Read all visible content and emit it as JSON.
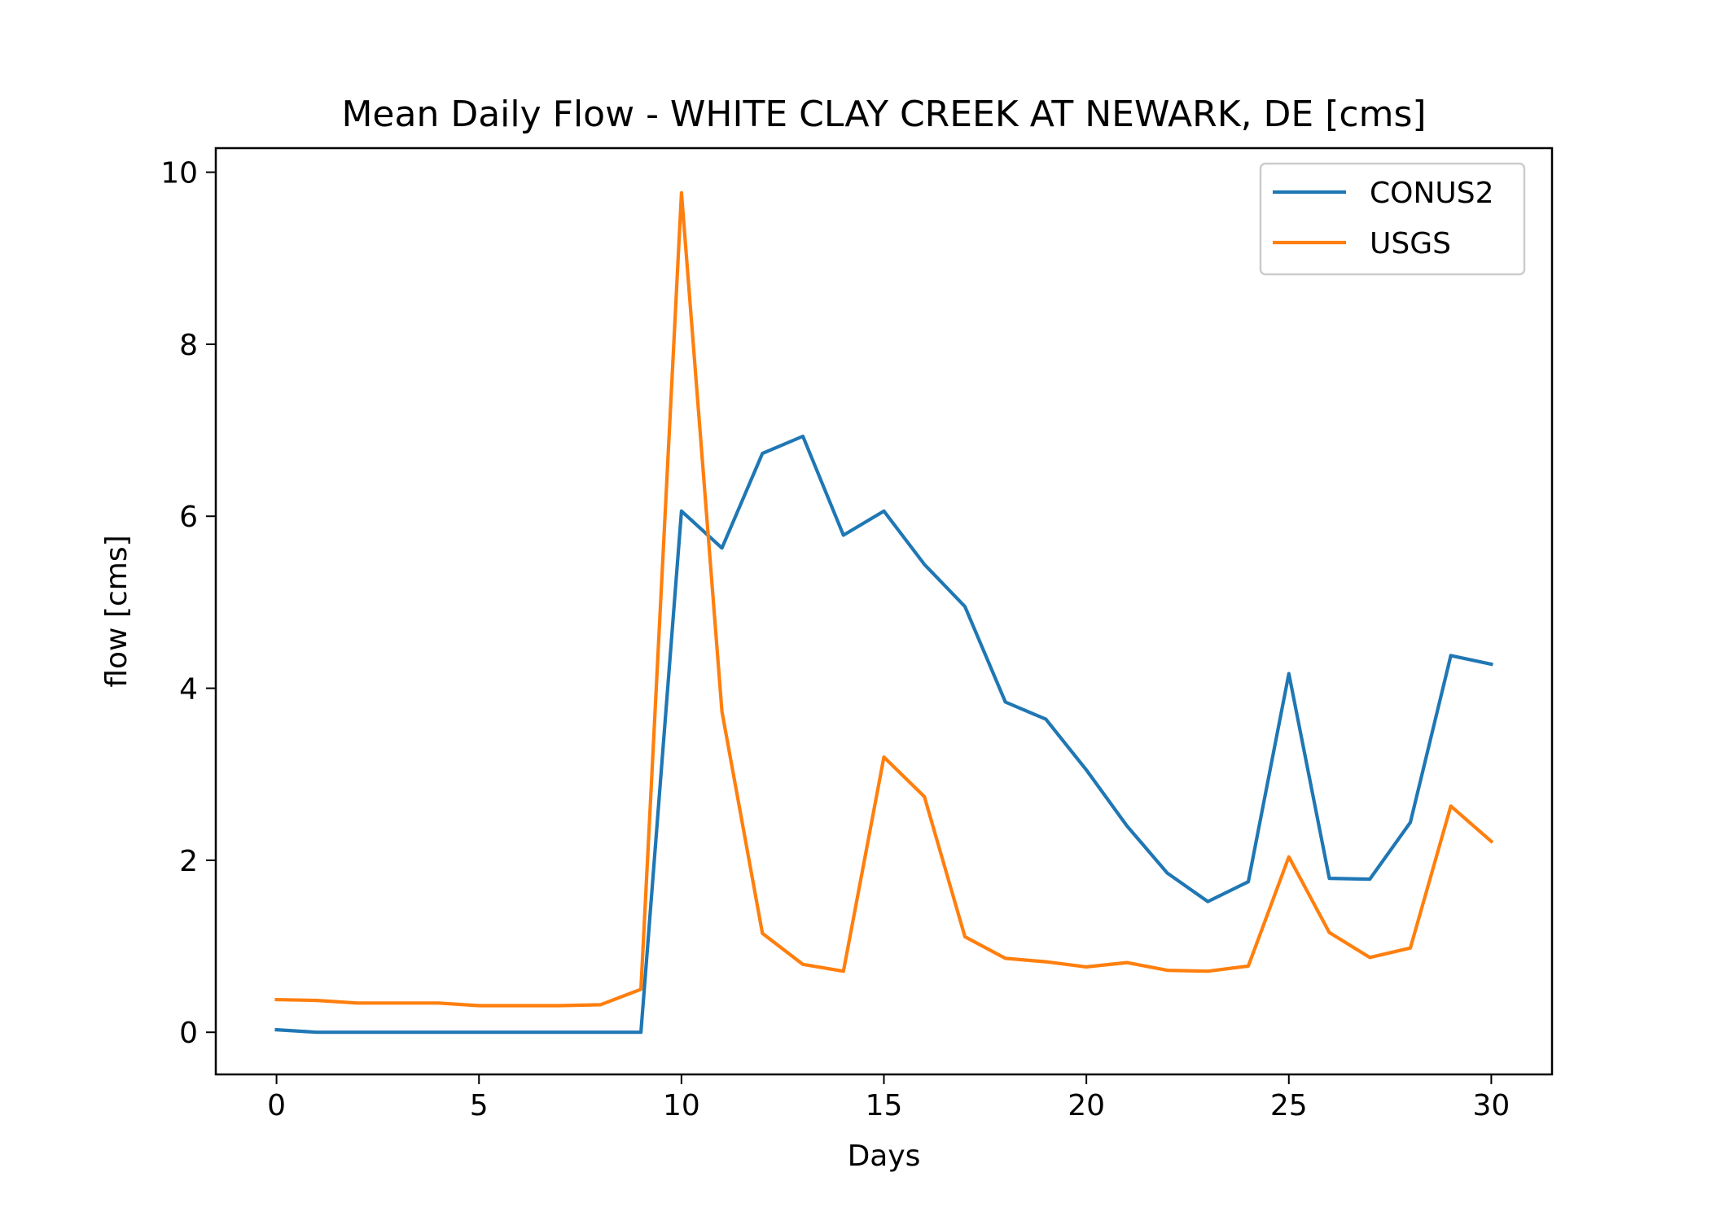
{
  "chart_data": {
    "type": "line",
    "title": "Mean Daily Flow - WHITE CLAY CREEK AT NEWARK, DE [cms]",
    "xlabel": "Days",
    "ylabel": "flow [cms]",
    "xlim": [
      -1.5,
      31.5
    ],
    "ylim": [
      -0.49,
      10.28
    ],
    "xticks": [
      0,
      5,
      10,
      15,
      20,
      25,
      30
    ],
    "yticks": [
      0,
      2,
      4,
      6,
      8,
      10
    ],
    "xtick_labels": [
      "0",
      "5",
      "10",
      "15",
      "20",
      "25",
      "30"
    ],
    "ytick_labels": [
      "0",
      "2",
      "4",
      "6",
      "8",
      "10"
    ],
    "grid": false,
    "legend_position": "top-right",
    "x": [
      0,
      1,
      2,
      3,
      4,
      5,
      6,
      7,
      8,
      9,
      10,
      11,
      12,
      13,
      14,
      15,
      16,
      17,
      18,
      19,
      20,
      21,
      22,
      23,
      24,
      25,
      26,
      27,
      28,
      29,
      30
    ],
    "series": [
      {
        "name": "CONUS2",
        "color": "#1f77b4",
        "values": [
          0.03,
          0.0,
          0.0,
          0.0,
          0.0,
          0.0,
          0.0,
          0.0,
          0.0,
          0.0,
          6.06,
          5.63,
          6.73,
          6.93,
          5.78,
          6.06,
          5.44,
          4.95,
          3.84,
          3.64,
          3.05,
          2.4,
          1.85,
          1.52,
          1.75,
          4.17,
          1.79,
          1.78,
          2.44,
          4.38,
          4.28
        ]
      },
      {
        "name": "USGS",
        "color": "#ff7f0e",
        "values": [
          0.38,
          0.37,
          0.34,
          0.34,
          0.34,
          0.31,
          0.31,
          0.31,
          0.32,
          0.5,
          9.76,
          3.73,
          1.15,
          0.79,
          0.71,
          3.2,
          2.74,
          1.11,
          0.86,
          0.82,
          0.76,
          0.81,
          0.72,
          0.71,
          0.77,
          2.04,
          1.16,
          0.87,
          0.98,
          2.63,
          2.22
        ]
      }
    ]
  }
}
